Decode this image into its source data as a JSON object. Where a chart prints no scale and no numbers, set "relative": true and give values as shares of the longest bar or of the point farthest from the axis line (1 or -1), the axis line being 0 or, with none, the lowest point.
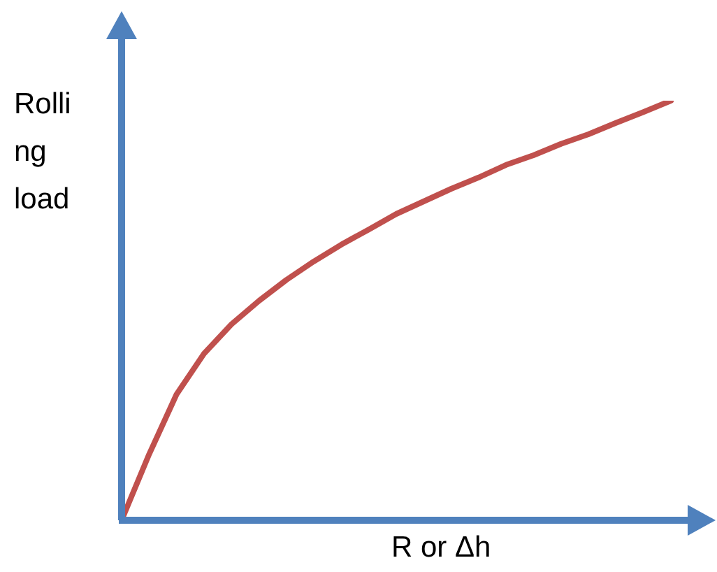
{
  "chart_data": {
    "type": "line",
    "xlabel": "R or Δh",
    "ylabel": "Rolling load",
    "relative": true,
    "categories": [
      null,
      null,
      null,
      null,
      null,
      null,
      null,
      null,
      null,
      null,
      null,
      null,
      null,
      null,
      null,
      null,
      null,
      null,
      null,
      null,
      null
    ],
    "series": [
      {
        "color": "#c0504d",
        "values": [
          0,
          0.157,
          0.3,
          0.397,
          0.467,
          0.523,
          0.573,
          0.617,
          0.657,
          0.693,
          0.73,
          0.76,
          0.79,
          0.817,
          0.847,
          0.87,
          0.897,
          0.92,
          0.947,
          0.973,
          1
        ]
      }
    ]
  }
}
